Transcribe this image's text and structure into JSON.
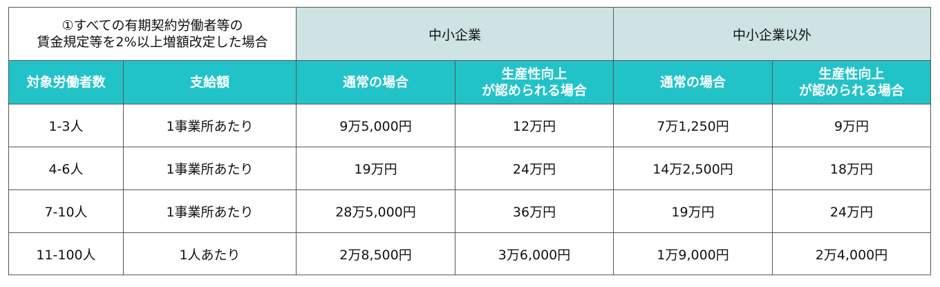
{
  "intro": {
    "line1": "①すべての有期契約労働者等の",
    "line2": "賃金規定等を2%以上増額改定した場合"
  },
  "groups": {
    "sme": "中小企業",
    "non_sme": "中小企業以外"
  },
  "headers": {
    "workers": "対象労働者数",
    "payment": "支給額",
    "normal": "通常の場合",
    "productivity_line1": "生産性向上",
    "productivity_line2": "が認められる場合"
  },
  "rows": [
    {
      "workers": "1-3人",
      "unit": "1事業所あたり",
      "sme_normal": "9万5,000円",
      "sme_prod": "12万円",
      "large_normal": "7万1,250円",
      "large_prod": "9万円"
    },
    {
      "workers": "4-6人",
      "unit": "1事業所あたり",
      "sme_normal": "19万円",
      "sme_prod": "24万円",
      "large_normal": "14万2,500円",
      "large_prod": "18万円"
    },
    {
      "workers": "7-10人",
      "unit": "1事業所あたり",
      "sme_normal": "28万5,000円",
      "sme_prod": "36万円",
      "large_normal": "19万円",
      "large_prod": "24万円"
    },
    {
      "workers": "11-100人",
      "unit": "1人あたり",
      "sme_normal": "2万8,500円",
      "sme_prod": "3万6,000円",
      "large_normal": "1万9,000円",
      "large_prod": "2万4,000円"
    }
  ],
  "colors": {
    "header_bg": "#22c3c8",
    "group_bg": "#cde3e4",
    "border": "#555555"
  }
}
